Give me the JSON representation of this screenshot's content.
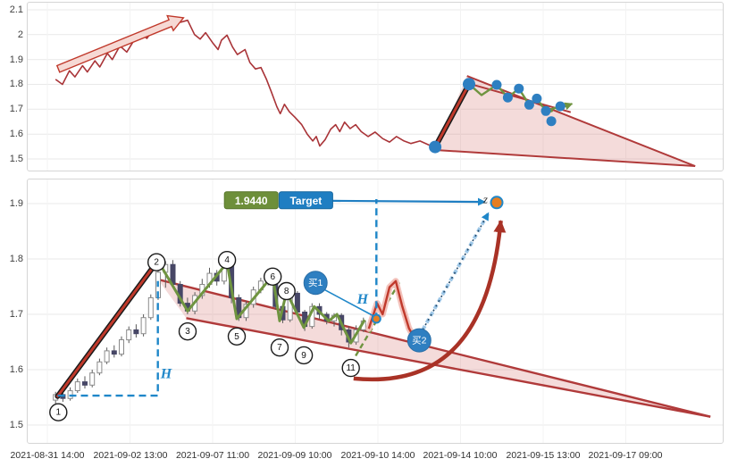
{
  "colors": {
    "background": "#ffffff",
    "panel_border": "#d5d5d5",
    "grid": "#e9e9e9",
    "grid_vertical": "#f3f3f3",
    "axis_text": "#3f3f3f",
    "price_line": "#a93438",
    "impulse_core": "#1a1a1a",
    "impulse_red": "#c0392b",
    "wedge_line": "#b03a3a",
    "wedge_fill": "rgba(205,92,85,0.22)",
    "zigzag_green": "#6f9440",
    "dashed_blue": "#1f87c9",
    "buy_fill": "#2e7fc1",
    "dot_blue": "#2e7fc1",
    "breakout_orange": "#e67e22",
    "candle_up_fill": "#ffffff",
    "candle_up_stroke": "#8a8a8a",
    "candle_down_fill": "#474766",
    "wick": "#5a5a5a",
    "badge_green": "#6d8f3a",
    "badge_green_border": "#58772c",
    "badge_blue": "#1f7ec2",
    "badge_blue_border": "#18689f",
    "curve_red": "#a93226",
    "annotation_arrow_fill": "#f6d9d4",
    "annotation_arrow_stroke": "#c0392b",
    "circle_stroke": "#1b1b1b",
    "circle_fill": "#ffffff",
    "label_dark": "#333333"
  },
  "x_axis": {
    "labels": [
      "2021-08-31 14:00",
      "2021-09-02 13:00",
      "2021-09-07 11:00",
      "2021-09-09 10:00",
      "2021-09-10 14:00",
      "2021-09-14 10:00",
      "2021-09-15 13:00",
      "2021-09-17 09:00"
    ]
  },
  "chart_data": [
    {
      "type": "line",
      "panel": "top",
      "title": "",
      "ylim": [
        1.46,
        2.12
      ],
      "yticks": [
        {
          "label": "2.1",
          "value": 2.1
        },
        {
          "label": "2",
          "value": 2.0
        },
        {
          "label": "1.9",
          "value": 1.9
        },
        {
          "label": "1.8",
          "value": 1.8
        },
        {
          "label": "1.7",
          "value": 1.7
        },
        {
          "label": "1.6",
          "value": 1.6
        },
        {
          "label": "1.5",
          "value": 1.5
        }
      ],
      "series": [
        {
          "name": "price",
          "color": "#a93438",
          "points": [
            [
              3.9,
              1.82
            ],
            [
              4.9,
              1.8
            ],
            [
              5.9,
              1.855
            ],
            [
              6.7,
              1.83
            ],
            [
              7.8,
              1.875
            ],
            [
              8.5,
              1.85
            ],
            [
              9.6,
              1.895
            ],
            [
              10.3,
              1.87
            ],
            [
              11.4,
              1.925
            ],
            [
              12.1,
              1.9
            ],
            [
              13.2,
              1.955
            ],
            [
              14.2,
              1.93
            ],
            [
              15.2,
              1.975
            ],
            [
              16.3,
              2.005
            ],
            [
              17.1,
              1.985
            ],
            [
              18.1,
              2.025
            ],
            [
              19.1,
              2.045
            ],
            [
              19.9,
              2.028
            ],
            [
              21.1,
              2.068
            ],
            [
              22.0,
              2.05
            ],
            [
              23.0,
              2.058
            ],
            [
              24.0,
              2.0
            ],
            [
              24.8,
              1.982
            ],
            [
              25.6,
              2.008
            ],
            [
              26.6,
              1.968
            ],
            [
              27.4,
              1.94
            ],
            [
              27.9,
              1.978
            ],
            [
              28.7,
              1.998
            ],
            [
              29.5,
              1.95
            ],
            [
              30.2,
              1.92
            ],
            [
              31.3,
              1.94
            ],
            [
              32.0,
              1.888
            ],
            [
              32.8,
              1.862
            ],
            [
              33.6,
              1.868
            ],
            [
              34.4,
              1.82
            ],
            [
              35.1,
              1.77
            ],
            [
              35.9,
              1.71
            ],
            [
              36.4,
              1.682
            ],
            [
              37.0,
              1.72
            ],
            [
              37.7,
              1.69
            ],
            [
              38.5,
              1.668
            ],
            [
              39.5,
              1.638
            ],
            [
              40.3,
              1.6
            ],
            [
              41.1,
              1.572
            ],
            [
              41.6,
              1.59
            ],
            [
              42.1,
              1.552
            ],
            [
              42.9,
              1.578
            ],
            [
              43.7,
              1.62
            ],
            [
              44.4,
              1.638
            ],
            [
              45.0,
              1.61
            ],
            [
              45.7,
              1.648
            ],
            [
              46.5,
              1.622
            ],
            [
              47.3,
              1.638
            ],
            [
              48.1,
              1.61
            ],
            [
              49.1,
              1.59
            ],
            [
              50.1,
              1.608
            ],
            [
              51.2,
              1.582
            ],
            [
              52.2,
              1.568
            ],
            [
              53.2,
              1.59
            ],
            [
              54.3,
              1.572
            ],
            [
              55.3,
              1.562
            ],
            [
              56.6,
              1.572
            ],
            [
              57.9,
              1.556
            ],
            [
              58.8,
              1.548
            ]
          ]
        }
      ],
      "annotations": {
        "trend_arrow": {
          "from": [
            4.3,
            1.862
          ],
          "to": [
            22.4,
            2.068
          ]
        },
        "impulse_line": {
          "from": [
            58.8,
            1.548
          ],
          "to": [
            63.7,
            1.801
          ]
        },
        "wedge": {
          "upper": [
            [
              63.4,
              1.834
            ],
            [
              96.4,
              1.471
            ]
          ],
          "lower": [
            [
              58.8,
              1.536
            ],
            [
              96.4,
              1.471
            ]
          ]
        },
        "decline_line": {
          "from": [
            63.7,
            1.803
          ],
          "to": [
            78.4,
            1.688
          ]
        },
        "zigzag": [
          [
            63.7,
            1.801
          ],
          [
            65.5,
            1.757
          ],
          [
            67.7,
            1.798
          ],
          [
            69.3,
            1.747
          ],
          [
            70.9,
            1.783
          ],
          [
            72.4,
            1.718
          ],
          [
            73.5,
            1.743
          ],
          [
            74.8,
            1.693
          ],
          [
            76.9,
            1.712
          ]
        ],
        "dots": [
          [
            58.8,
            1.548
          ],
          [
            63.7,
            1.801
          ],
          [
            67.7,
            1.798
          ],
          [
            69.3,
            1.747
          ],
          [
            70.9,
            1.783
          ],
          [
            72.4,
            1.718
          ],
          [
            73.5,
            1.743
          ],
          [
            74.8,
            1.693
          ],
          [
            75.6,
            1.652
          ],
          [
            76.9,
            1.712
          ]
        ],
        "green_arrow": {
          "from": [
            75.2,
            1.688
          ],
          "to": [
            78.6,
            1.722
          ]
        }
      }
    },
    {
      "type": "candlestick",
      "panel": "bottom",
      "title": "",
      "ylim": [
        1.47,
        1.95
      ],
      "yticks": [
        {
          "label": "1.9",
          "value": 1.9
        },
        {
          "label": "1.8",
          "value": 1.8
        },
        {
          "label": "1.7",
          "value": 1.7
        },
        {
          "label": "1.6",
          "value": 1.6
        },
        {
          "label": "1.5",
          "value": 1.5
        }
      ],
      "x_start_pct": 3.9,
      "x_step_pct": 1.06,
      "candle_format": "[open, close, low, high]",
      "candles": [
        [
          1.545,
          1.555,
          1.538,
          1.56
        ],
        [
          1.555,
          1.548,
          1.542,
          1.562
        ],
        [
          1.548,
          1.562,
          1.544,
          1.568
        ],
        [
          1.562,
          1.578,
          1.558,
          1.584
        ],
        [
          1.578,
          1.572,
          1.566,
          1.588
        ],
        [
          1.572,
          1.594,
          1.568,
          1.6
        ],
        [
          1.594,
          1.614,
          1.59,
          1.62
        ],
        [
          1.614,
          1.634,
          1.61,
          1.64
        ],
        [
          1.634,
          1.628,
          1.622,
          1.644
        ],
        [
          1.628,
          1.654,
          1.624,
          1.66
        ],
        [
          1.654,
          1.672,
          1.648,
          1.678
        ],
        [
          1.672,
          1.665,
          1.658,
          1.682
        ],
        [
          1.665,
          1.694,
          1.66,
          1.7
        ],
        [
          1.694,
          1.73,
          1.69,
          1.736
        ],
        [
          1.73,
          1.776,
          1.726,
          1.8
        ],
        [
          1.776,
          1.79,
          1.748,
          1.796
        ],
        [
          1.79,
          1.754,
          1.748,
          1.798
        ],
        [
          1.754,
          1.72,
          1.714,
          1.76
        ],
        [
          1.72,
          1.706,
          1.7,
          1.73
        ],
        [
          1.706,
          1.734,
          1.7,
          1.74
        ],
        [
          1.734,
          1.754,
          1.728,
          1.764
        ],
        [
          1.754,
          1.774,
          1.748,
          1.784
        ],
        [
          1.774,
          1.76,
          1.752,
          1.78
        ],
        [
          1.76,
          1.792,
          1.754,
          1.8
        ],
        [
          1.792,
          1.73,
          1.72,
          1.796
        ],
        [
          1.73,
          1.694,
          1.688,
          1.736
        ],
        [
          1.694,
          1.718,
          1.688,
          1.724
        ],
        [
          1.718,
          1.744,
          1.712,
          1.75
        ],
        [
          1.744,
          1.76,
          1.738,
          1.766
        ],
        [
          1.76,
          1.77,
          1.752,
          1.776
        ],
        [
          1.77,
          1.714,
          1.708,
          1.774
        ],
        [
          1.714,
          1.69,
          1.684,
          1.718
        ],
        [
          1.69,
          1.738,
          1.686,
          1.744
        ],
        [
          1.738,
          1.704,
          1.698,
          1.742
        ],
        [
          1.704,
          1.678,
          1.67,
          1.708
        ],
        [
          1.678,
          1.714,
          1.674,
          1.72
        ],
        [
          1.714,
          1.7,
          1.692,
          1.72
        ],
        [
          1.7,
          1.688,
          1.682,
          1.704
        ],
        [
          1.688,
          1.698,
          1.678,
          1.702
        ],
        [
          1.698,
          1.672,
          1.662,
          1.702
        ],
        [
          1.672,
          1.65,
          1.64,
          1.678
        ],
        [
          1.65,
          1.672,
          1.645,
          1.68
        ],
        [
          1.672,
          1.688,
          1.668,
          1.694
        ],
        [
          1.688,
          1.682,
          1.672,
          1.7
        ]
      ],
      "annotations": {
        "impulse_line": {
          "from": [
            4.2,
            1.552
          ],
          "to": [
            18.7,
            1.797
          ]
        },
        "wedge": {
          "upper": [
            [
              18.7,
              1.763
            ],
            [
              98.6,
              1.515
            ]
          ],
          "lower": [
            [
              22.8,
              1.693
            ],
            [
              98.6,
              1.515
            ]
          ]
        },
        "zigzag": [
          [
            18.7,
            1.797
          ],
          [
            23.0,
            1.706
          ],
          [
            28.7,
            1.793
          ],
          [
            30.1,
            1.692
          ],
          [
            35.3,
            1.77
          ],
          [
            36.3,
            1.688
          ],
          [
            37.3,
            1.74
          ],
          [
            39.8,
            1.676
          ],
          [
            41.3,
            1.714
          ],
          [
            43.4,
            1.688
          ],
          [
            44.6,
            1.7
          ],
          [
            46.6,
            1.648
          ],
          [
            48.6,
            1.69
          ]
        ],
        "height_measure_1": {
          "path": [
            [
              4.2,
              1.553
            ],
            [
              18.7,
              1.553
            ],
            [
              18.7,
              1.76
            ]
          ],
          "label": "H",
          "label_at": [
            19.9,
            1.592
          ]
        },
        "height_measure_2": {
          "path": [
            [
              50.3,
              1.69
            ],
            [
              50.3,
              1.908
            ]
          ],
          "label": "H",
          "label_at": [
            48.3,
            1.727
          ]
        },
        "breakout_dot": [
          50.3,
          1.692
        ],
        "target_point": {
          "label": "z",
          "dot": [
            67.7,
            1.902
          ],
          "label_at": [
            66.4,
            1.908
          ]
        },
        "value_badge": {
          "text": "1.9440",
          "center": [
            32.2,
            1.906
          ]
        },
        "target_badge": {
          "text": "Target",
          "center": [
            40.1,
            1.906
          ]
        },
        "target_arrow": {
          "from": [
            44.0,
            1.905
          ],
          "to": [
            66.0,
            1.903
          ]
        },
        "buy1": {
          "label": "买1",
          "at": [
            41.5,
            1.757
          ]
        },
        "buy1_line": {
          "from": [
            42.7,
            1.745
          ],
          "to": [
            49.9,
            1.697
          ]
        },
        "buy2": {
          "label": "买2",
          "at": [
            56.5,
            1.653
          ]
        },
        "green_arrow": {
          "from": [
            47.3,
            1.625
          ],
          "to": [
            53.6,
            1.757
          ]
        },
        "post_pattern_path": [
          [
            49.2,
            1.674
          ],
          [
            50.4,
            1.72
          ],
          [
            51.2,
            1.7
          ],
          [
            52.2,
            1.749
          ],
          [
            53.1,
            1.76
          ],
          [
            54.0,
            1.716
          ],
          [
            55.0,
            1.675
          ],
          [
            55.8,
            1.657
          ],
          [
            56.5,
            1.65
          ]
        ],
        "curve_arrow": {
          "from": [
            47.0,
            1.584
          ],
          "c1": [
            57.9,
            1.571
          ],
          "c2": [
            66.5,
            1.631
          ],
          "to": [
            68.3,
            1.869
          ]
        },
        "dotted_arrow": {
          "from": [
            57.0,
            1.672
          ],
          "to": [
            66.5,
            1.883
          ]
        },
        "numbered_points": [
          {
            "n": "1",
            "at": [
              4.3,
              1.523
            ]
          },
          {
            "n": "2",
            "at": [
              18.5,
              1.794
            ]
          },
          {
            "n": "3",
            "at": [
              23.0,
              1.669
            ]
          },
          {
            "n": "4",
            "at": [
              28.7,
              1.798
            ]
          },
          {
            "n": "5",
            "at": [
              30.1,
              1.66
            ]
          },
          {
            "n": "6",
            "at": [
              35.3,
              1.768
            ]
          },
          {
            "n": "7",
            "at": [
              36.3,
              1.64
            ]
          },
          {
            "n": "8",
            "at": [
              37.3,
              1.742
            ]
          },
          {
            "n": "9",
            "at": [
              39.8,
              1.626
            ]
          },
          {
            "n": "11",
            "at": [
              46.6,
              1.603
            ]
          }
        ]
      }
    }
  ]
}
